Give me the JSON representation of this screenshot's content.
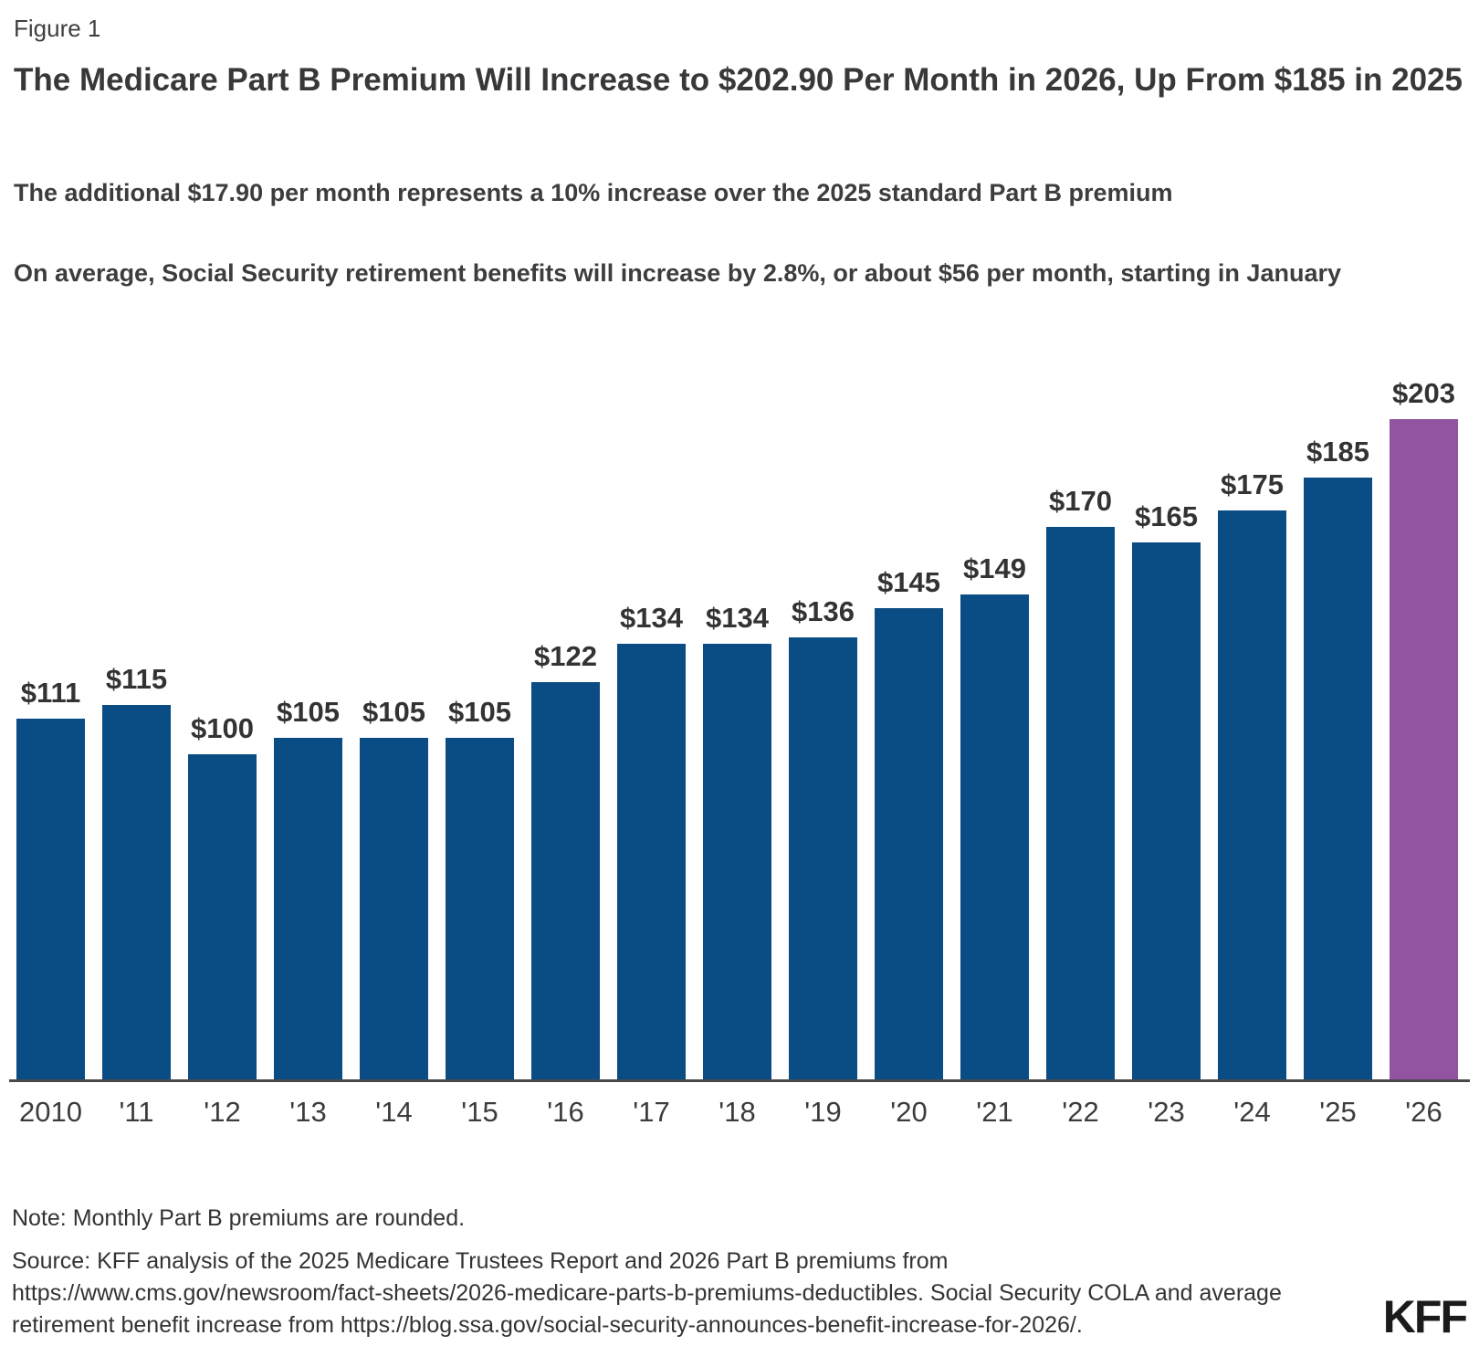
{
  "figure_label": "Figure 1",
  "header": {
    "title": "The Medicare Part B Premium Will Increase to $202.90 Per Month in 2026, Up From $185 in 2025",
    "subtitle1": "The additional $17.90 per month represents a 10% increase over the 2025 standard Part B premium",
    "subtitle2": "On average, Social Security retirement benefits will increase by 2.8%, or about $56 per month, starting in January"
  },
  "chart_data": {
    "type": "bar",
    "title": "",
    "xlabel": "",
    "ylabel": "",
    "categories": [
      "2010",
      "'11",
      "'12",
      "'13",
      "'14",
      "'15",
      "'16",
      "'17",
      "'18",
      "'19",
      "'20",
      "'21",
      "'22",
      "'23",
      "'24",
      "'25",
      "'26"
    ],
    "values": [
      111,
      115,
      100,
      105,
      105,
      105,
      122,
      134,
      134,
      136,
      145,
      149,
      170,
      165,
      175,
      185,
      203
    ],
    "data_labels": [
      "$111",
      "$115",
      "$100",
      "$105",
      "$105",
      "$105",
      "$122",
      "$134",
      "$134",
      "$136",
      "$145",
      "$149",
      "$170",
      "$165",
      "$175",
      "$185",
      "$203"
    ],
    "ylim": [
      0,
      203
    ],
    "grid": false,
    "legend": "none",
    "bar_color": "#0a4c84",
    "highlight_color": "#9254a0",
    "highlight_index": 16,
    "axis_color": "#4a4a4c"
  },
  "footer": {
    "note": "Note: Monthly Part B premiums are rounded.",
    "source_lines": [
      "Source: KFF analysis of the 2025 Medicare Trustees Report and 2026 Part B premiums from",
      "https://www.cms.gov/newsroom/fact-sheets/2026-medicare-parts-b-premiums-deductibles. Social Security COLA and average",
      "retirement benefit increase from https://blog.ssa.gov/social-security-announces-benefit-increase-for-2026/."
    ],
    "logo": "KFF"
  }
}
